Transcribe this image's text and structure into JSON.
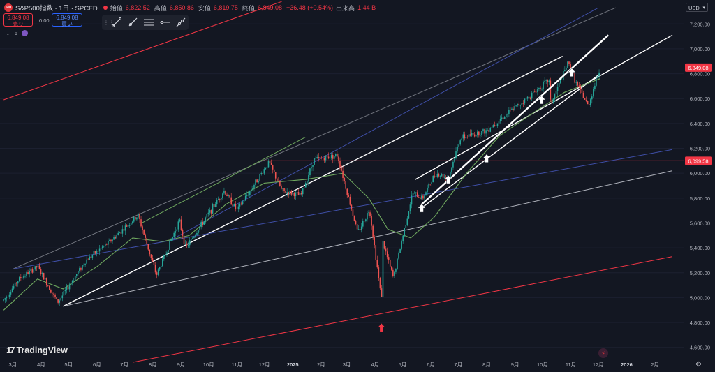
{
  "header": {
    "symbol": "S&P500指数 · 1日 · SPCFD",
    "badge": "500",
    "open_label": "始値",
    "open_value": "6,822.52",
    "high_label": "高値",
    "high_value": "6,850.86",
    "low_label": "安値",
    "low_value": "6,819.75",
    "close_label": "終値",
    "close_value": "6,849.08",
    "change": "+36.48 (+0.54%)",
    "volume_label": "出来高",
    "volume_value": "1.44 B"
  },
  "trade": {
    "sell_price": "6,849.08",
    "sell_label": "売り",
    "spread": "0.00",
    "buy_price": "6,849.08",
    "buy_label": "買い"
  },
  "indicators": {
    "count": "5"
  },
  "toolbar": {
    "tools": [
      "trend-line-icon",
      "ray-icon",
      "parallel-channel-icon",
      "horizontal-ray-icon",
      "extended-line-icon"
    ]
  },
  "currency": "USD",
  "branding": {
    "logo_mark": "17",
    "name": "TradingView"
  },
  "colors": {
    "background": "#131722",
    "up": "#26a69a",
    "down": "#ef5350",
    "channel_red": "#f23645",
    "trend_white": "#ffffff",
    "trend_grey": "#b2b5be",
    "trend_blue": "#3f4fa8",
    "ma_green": "#6fa85f",
    "arrow_red": "#f23645"
  },
  "chart_data": {
    "type": "candlestick",
    "x_axis_labels": [
      "3月",
      "4月",
      "5月",
      "6月",
      "7月",
      "8月",
      "9月",
      "10月",
      "11月",
      "12月",
      "2025",
      "2月",
      "3月",
      "4月",
      "5月",
      "6月",
      "7月",
      "8月",
      "9月",
      "10月",
      "11月",
      "12月",
      "2026",
      "2月"
    ],
    "y_axis_ticks": [
      4600,
      4800,
      5000,
      5200,
      5400,
      5600,
      5800,
      6000,
      6200,
      6400,
      6600,
      6800,
      7000,
      7200
    ],
    "y_axis_tick_labels": [
      "4,600.00",
      "4,800.00",
      "5,000.00",
      "5,200.00",
      "5,400.00",
      "5,600.00",
      "5,800.00",
      "6,000.00",
      "6,200.00",
      "6,400.00",
      "6,600.00",
      "6,800.00",
      "7,000.00",
      "7,200.00"
    ],
    "ylim": [
      4520,
      7280
    ],
    "price_path": [
      [
        "2024-02-20",
        4980
      ],
      [
        "2024-03-08",
        5150
      ],
      [
        "2024-03-28",
        5250
      ],
      [
        "2024-04-19",
        4960
      ],
      [
        "2024-05-20",
        5300
      ],
      [
        "2024-06-15",
        5450
      ],
      [
        "2024-07-16",
        5660
      ],
      [
        "2024-08-05",
        5180
      ],
      [
        "2024-08-30",
        5620
      ],
      [
        "2024-09-06",
        5400
      ],
      [
        "2024-10-18",
        5860
      ],
      [
        "2024-11-01",
        5700
      ],
      [
        "2024-12-06",
        6090
      ],
      [
        "2024-12-20",
        5860
      ],
      [
        "2025-01-10",
        5820
      ],
      [
        "2025-01-24",
        6110
      ],
      [
        "2025-02-19",
        6144
      ],
      [
        "2025-03-13",
        5520
      ],
      [
        "2025-03-26",
        5710
      ],
      [
        "2025-04-08",
        4982
      ],
      [
        "2025-04-09",
        5456
      ],
      [
        "2025-04-21",
        5158
      ],
      [
        "2025-05-12",
        5840
      ],
      [
        "2025-05-23",
        5800
      ],
      [
        "2025-06-06",
        6000
      ],
      [
        "2025-06-20",
        5960
      ],
      [
        "2025-07-03",
        6280
      ],
      [
        "2025-07-31",
        6340
      ],
      [
        "2025-08-22",
        6470
      ],
      [
        "2025-09-12",
        6590
      ],
      [
        "2025-10-08",
        6750
      ],
      [
        "2025-10-10",
        6550
      ],
      [
        "2025-10-29",
        6890
      ],
      [
        "2025-11-07",
        6720
      ],
      [
        "2025-11-20",
        6540
      ],
      [
        "2025-12-03",
        6849
      ]
    ],
    "moving_average": [
      [
        "2024-02-20",
        4900
      ],
      [
        "2024-03-28",
        5150
      ],
      [
        "2024-04-25",
        5070
      ],
      [
        "2024-06-01",
        5250
      ],
      [
        "2024-07-10",
        5480
      ],
      [
        "2024-08-12",
        5450
      ],
      [
        "2024-09-10",
        5500
      ],
      [
        "2024-10-20",
        5750
      ],
      [
        "2024-12-01",
        5920
      ],
      [
        "2025-01-15",
        5950
      ],
      [
        "2025-02-25",
        6000
      ],
      [
        "2025-03-25",
        5800
      ],
      [
        "2025-04-15",
        5550
      ],
      [
        "2025-05-10",
        5480
      ],
      [
        "2025-06-05",
        5650
      ],
      [
        "2025-07-10",
        6000
      ],
      [
        "2025-08-15",
        6300
      ],
      [
        "2025-09-20",
        6480
      ],
      [
        "2025-10-25",
        6650
      ],
      [
        "2025-12-03",
        6760
      ]
    ],
    "lines": [
      {
        "color": "red",
        "from": [
          "2024-02-20",
          6590
        ],
        "to": [
          "2024-12-20",
          7380
        ]
      },
      {
        "color": "red",
        "from": [
          "2024-07-10",
          4480
        ],
        "to": [
          "2026-02-20",
          5330
        ]
      },
      {
        "color": "red",
        "type": "horizontal",
        "price": 6099.58
      },
      {
        "color": "white",
        "from": [
          "2024-04-25",
          4930
        ],
        "to": [
          "2025-10-23",
          6940
        ]
      },
      {
        "color": "white",
        "from": [
          "2025-05-15",
          5950
        ],
        "to": [
          "2026-02-20",
          7110
        ]
      },
      {
        "color": "white",
        "from": [
          "2025-05-20",
          5710
        ],
        "to": [
          "2025-12-03",
          6800
        ]
      },
      {
        "color": "white",
        "width": "thick",
        "from": [
          "2025-05-22",
          5750
        ],
        "to": [
          "2025-12-12",
          7110
        ]
      },
      {
        "color": "grey",
        "from": [
          "2024-04-25",
          4930
        ],
        "to": [
          "2026-02-20",
          6020
        ]
      },
      {
        "color": "grey",
        "from": [
          "2024-03-01",
          5230
        ],
        "to": [
          "2025-12-20",
          7330
        ]
      },
      {
        "color": "blue",
        "from": [
          "2024-03-01",
          5230
        ],
        "to": [
          "2026-02-20",
          6190
        ]
      },
      {
        "color": "blue",
        "from": [
          "2024-08-20",
          5460
        ],
        "to": [
          "2025-12-01",
          7330
        ]
      },
      {
        "color": "green",
        "from": [
          "2024-07-20",
          5600
        ],
        "to": [
          "2025-01-15",
          6290
        ]
      }
    ],
    "markers": [
      {
        "type": "arrow-up",
        "color": "white",
        "at": [
          "2025-05-22",
          5720
        ]
      },
      {
        "type": "arrow-up",
        "color": "white",
        "at": [
          "2025-06-20",
          5950
        ]
      },
      {
        "type": "arrow-up",
        "color": "white",
        "at": [
          "2025-08-01",
          6120
        ]
      },
      {
        "type": "arrow-up",
        "color": "white",
        "at": [
          "2025-09-30",
          6590
        ]
      },
      {
        "type": "arrow-up",
        "color": "white",
        "at": [
          "2025-11-02",
          6810
        ]
      },
      {
        "type": "arrow-up",
        "color": "red",
        "at": [
          "2025-04-08",
          4760
        ]
      }
    ],
    "price_labels": [
      {
        "price": 6849.08,
        "text": "6,849.08"
      },
      {
        "price": 6099.58,
        "text": "6,099.58"
      }
    ]
  }
}
